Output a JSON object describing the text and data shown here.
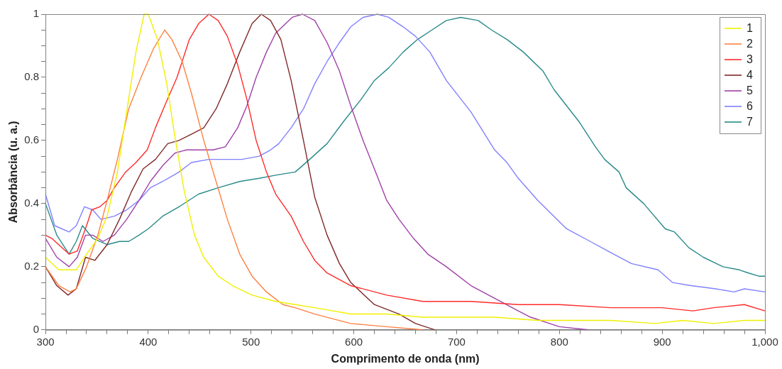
{
  "chart_data": {
    "type": "line",
    "xlabel": "Comprimento de onda (nm)",
    "ylabel": "Absorbância (u. a.)",
    "xlim": [
      300,
      1000
    ],
    "ylim": [
      0,
      1
    ],
    "xticks": [
      300,
      {
        "value": 320,
        "label": null
      },
      {
        "value": 340,
        "label": null
      },
      {
        "value": 360,
        "label": null
      },
      {
        "value": 380,
        "label": null
      },
      400,
      {
        "value": 420,
        "label": null
      },
      {
        "value": 440,
        "label": null
      },
      {
        "value": 460,
        "label": null
      },
      {
        "value": 480,
        "label": null
      },
      500,
      {
        "value": 520,
        "label": null
      },
      {
        "value": 540,
        "label": null
      },
      {
        "value": 560,
        "label": null
      },
      {
        "value": 580,
        "label": null
      },
      600,
      {
        "value": 620,
        "label": null
      },
      {
        "value": 640,
        "label": null
      },
      {
        "value": 660,
        "label": null
      },
      {
        "value": 680,
        "label": null
      },
      700,
      {
        "value": 720,
        "label": null
      },
      {
        "value": 740,
        "label": null
      },
      {
        "value": 760,
        "label": null
      },
      {
        "value": 780,
        "label": null
      },
      800,
      {
        "value": 820,
        "label": null
      },
      {
        "value": 840,
        "label": null
      },
      {
        "value": 860,
        "label": null
      },
      {
        "value": 880,
        "label": null
      },
      900,
      {
        "value": 920,
        "label": null
      },
      {
        "value": 940,
        "label": null
      },
      {
        "value": 960,
        "label": null
      },
      {
        "value": 980,
        "label": null
      },
      {
        "value": 1000,
        "label": "1,000"
      }
    ],
    "yticks": [
      0,
      {
        "value": 0.05,
        "label": null
      },
      {
        "value": 0.1,
        "label": null
      },
      {
        "value": 0.15,
        "label": null
      },
      0.2,
      {
        "value": 0.25,
        "label": null
      },
      {
        "value": 0.3,
        "label": null
      },
      {
        "value": 0.35,
        "label": null
      },
      0.4,
      {
        "value": 0.45,
        "label": null
      },
      {
        "value": 0.5,
        "label": null
      },
      {
        "value": 0.55,
        "label": null
      },
      0.6,
      {
        "value": 0.65,
        "label": null
      },
      {
        "value": 0.7,
        "label": null
      },
      {
        "value": 0.75,
        "label": null
      },
      0.8,
      {
        "value": 0.85,
        "label": null
      },
      {
        "value": 0.9,
        "label": null
      },
      {
        "value": 0.95,
        "label": null
      },
      1
    ],
    "grid": false,
    "legend": "top right",
    "marker": "none",
    "line_style": "solid",
    "series": [
      {
        "name": "1",
        "color": "#f0f000",
        "x": [
          300,
          313,
          330,
          340,
          351,
          360,
          370,
          379,
          388,
          396,
          400,
          409,
          418,
          426,
          435,
          445,
          454,
          468,
          482,
          501,
          524,
          543,
          562,
          597,
          632,
          667,
          700,
          737,
          779,
          800,
          850,
          893,
          920,
          950,
          980,
          1000
        ],
        "values": [
          0.23,
          0.19,
          0.19,
          0.24,
          0.29,
          0.36,
          0.5,
          0.69,
          0.88,
          1,
          1,
          0.92,
          0.78,
          0.61,
          0.44,
          0.3,
          0.23,
          0.17,
          0.14,
          0.11,
          0.09,
          0.08,
          0.07,
          0.05,
          0.05,
          0.04,
          0.04,
          0.04,
          0.03,
          0.03,
          0.03,
          0.02,
          0.03,
          0.02,
          0.03,
          0.03
        ]
      },
      {
        "name": "2",
        "color": "#ff8040",
        "x": [
          300,
          313,
          324,
          330,
          340,
          351,
          360,
          370,
          381,
          393,
          405,
          416,
          423,
          433,
          442,
          454,
          466,
          477,
          489,
          501,
          515,
          531,
          543,
          562,
          597,
          632,
          667
        ],
        "values": [
          0.2,
          0.14,
          0.12,
          0.13,
          0.2,
          0.3,
          0.41,
          0.54,
          0.7,
          0.8,
          0.89,
          0.95,
          0.92,
          0.85,
          0.75,
          0.6,
          0.47,
          0.35,
          0.24,
          0.17,
          0.12,
          0.08,
          0.07,
          0.05,
          0.02,
          0.01,
          0
        ]
      },
      {
        "name": "3",
        "color": "#ff2a2a",
        "x": [
          300,
          306,
          323,
          331,
          340,
          345,
          353,
          360,
          367,
          378,
          388,
          399,
          407,
          416,
          428,
          440,
          449,
          459,
          468,
          477,
          487,
          496,
          505,
          515,
          524,
          539,
          551,
          562,
          574,
          597,
          632,
          667,
          714,
          760,
          800,
          850,
          900,
          930,
          950,
          980,
          1000
        ],
        "values": [
          0.3,
          0.29,
          0.24,
          0.25,
          0.33,
          0.38,
          0.39,
          0.41,
          0.45,
          0.5,
          0.53,
          0.57,
          0.64,
          0.71,
          0.8,
          0.92,
          0.97,
          1,
          0.98,
          0.93,
          0.84,
          0.73,
          0.6,
          0.5,
          0.43,
          0.36,
          0.28,
          0.22,
          0.18,
          0.14,
          0.11,
          0.09,
          0.09,
          0.08,
          0.08,
          0.07,
          0.07,
          0.06,
          0.07,
          0.08,
          0.06
        ]
      },
      {
        "name": "4",
        "color": "#802828",
        "x": [
          300,
          311,
          322,
          330,
          339,
          348,
          360,
          372,
          384,
          395,
          407,
          419,
          430,
          442,
          454,
          466,
          477,
          489,
          501,
          510,
          519,
          529,
          539,
          551,
          562,
          574,
          586,
          597,
          620,
          644,
          660,
          679
        ],
        "values": [
          0.2,
          0.14,
          0.11,
          0.13,
          0.23,
          0.22,
          0.27,
          0.35,
          0.44,
          0.51,
          0.54,
          0.59,
          0.6,
          0.62,
          0.64,
          0.7,
          0.78,
          0.88,
          0.97,
          1,
          0.98,
          0.92,
          0.79,
          0.6,
          0.42,
          0.3,
          0.21,
          0.15,
          0.08,
          0.05,
          0.02,
          0
        ]
      },
      {
        "name": "5",
        "color": "#a040a8",
        "x": [
          300,
          311,
          323,
          331,
          339,
          346,
          356,
          367,
          379,
          391,
          402,
          414,
          426,
          437,
          449,
          463,
          475,
          487,
          496,
          505,
          515,
          524,
          540,
          550,
          562,
          574,
          586,
          597,
          609,
          620,
          632,
          644,
          658,
          672,
          690,
          714,
          737,
          760,
          772,
          800,
          828
        ],
        "values": [
          0.29,
          0.23,
          0.2,
          0.23,
          0.3,
          0.3,
          0.28,
          0.3,
          0.35,
          0.41,
          0.47,
          0.52,
          0.56,
          0.57,
          0.57,
          0.57,
          0.58,
          0.64,
          0.71,
          0.8,
          0.88,
          0.94,
          0.99,
          1,
          0.98,
          0.91,
          0.82,
          0.71,
          0.6,
          0.51,
          0.41,
          0.35,
          0.29,
          0.24,
          0.2,
          0.14,
          0.1,
          0.06,
          0.04,
          0.01,
          0
        ]
      },
      {
        "name": "6",
        "color": "#8080ff",
        "x": [
          300,
          309,
          323,
          330,
          338,
          346,
          354,
          367,
          379,
          391,
          402,
          414,
          430,
          442,
          459,
          477,
          491,
          508,
          519,
          527,
          539,
          551,
          562,
          574,
          586,
          597,
          609,
          623,
          634,
          648,
          660,
          674,
          690,
          714,
          737,
          749,
          760,
          779,
          807,
          830,
          847,
          870,
          896,
          910,
          928,
          952,
          970,
          980,
          1000
        ],
        "values": [
          0.43,
          0.33,
          0.31,
          0.33,
          0.39,
          0.38,
          0.35,
          0.36,
          0.38,
          0.41,
          0.45,
          0.47,
          0.5,
          0.53,
          0.54,
          0.54,
          0.54,
          0.55,
          0.57,
          0.59,
          0.64,
          0.7,
          0.78,
          0.85,
          0.91,
          0.96,
          0.99,
          1,
          0.99,
          0.96,
          0.93,
          0.88,
          0.79,
          0.69,
          0.57,
          0.53,
          0.48,
          0.41,
          0.32,
          0.28,
          0.25,
          0.21,
          0.19,
          0.15,
          0.14,
          0.13,
          0.12,
          0.13,
          0.12
        ]
      },
      {
        "name": "7",
        "color": "#2a8a8a",
        "x": [
          300,
          311,
          323,
          330,
          336,
          346,
          360,
          372,
          381,
          391,
          400,
          414,
          430,
          449,
          468,
          489,
          508,
          524,
          543,
          557,
          574,
          590,
          607,
          620,
          634,
          648,
          662,
          676,
          690,
          704,
          721,
          734,
          749,
          765,
          784,
          795,
          819,
          835,
          844,
          858,
          865,
          882,
          903,
          912,
          926,
          940,
          959,
          975,
          984,
          994,
          1000
        ],
        "values": [
          0.4,
          0.3,
          0.24,
          0.28,
          0.33,
          0.29,
          0.27,
          0.28,
          0.28,
          0.3,
          0.32,
          0.36,
          0.39,
          0.43,
          0.45,
          0.47,
          0.48,
          0.49,
          0.5,
          0.54,
          0.59,
          0.66,
          0.73,
          0.79,
          0.83,
          0.88,
          0.92,
          0.95,
          0.98,
          0.99,
          0.98,
          0.95,
          0.92,
          0.88,
          0.82,
          0.76,
          0.66,
          0.58,
          0.54,
          0.5,
          0.45,
          0.4,
          0.32,
          0.31,
          0.26,
          0.23,
          0.2,
          0.19,
          0.18,
          0.17,
          0.17
        ]
      }
    ]
  }
}
